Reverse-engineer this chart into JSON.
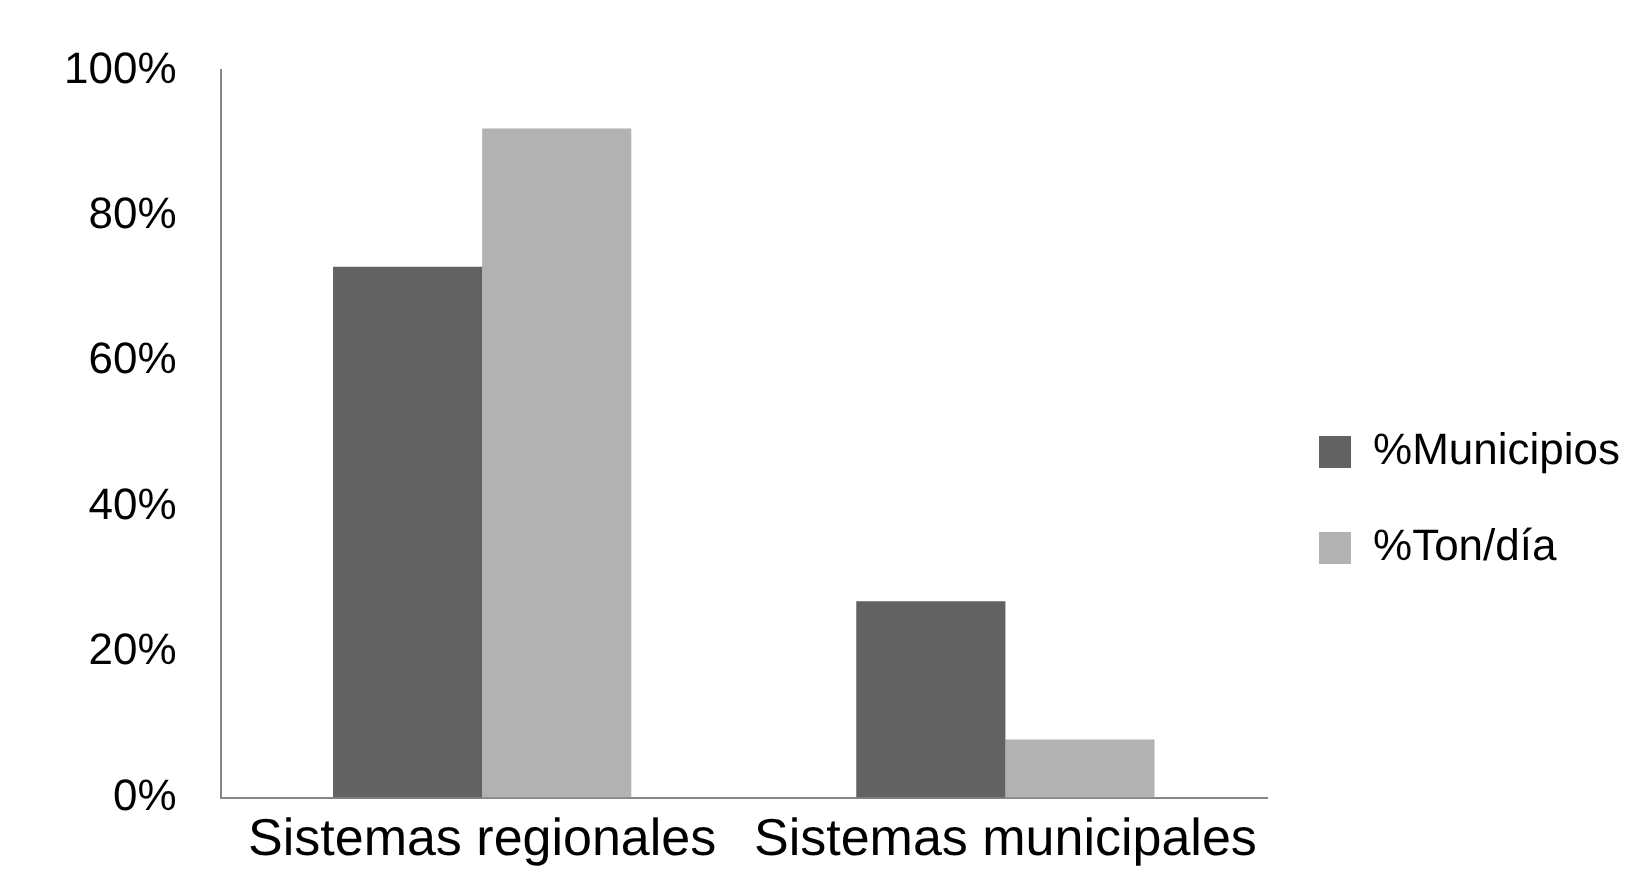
{
  "chart_data": {
    "type": "bar",
    "categories": [
      "Sistemas regionales",
      "Sistemas municipales"
    ],
    "series": [
      {
        "name": "%Municipios",
        "color": "#626262",
        "values": [
          73,
          27
        ]
      },
      {
        "name": "%Ton/día",
        "color": "#b2b2b2",
        "values": [
          92,
          8
        ]
      }
    ],
    "ylim": [
      0,
      100
    ],
    "yticks": [
      {
        "value": 0,
        "label": "0%"
      },
      {
        "value": 20,
        "label": "20%"
      },
      {
        "value": 40,
        "label": "40%"
      },
      {
        "value": 60,
        "label": "60%"
      },
      {
        "value": 80,
        "label": "80%"
      },
      {
        "value": 100,
        "label": "100%"
      }
    ],
    "legend": "right"
  }
}
